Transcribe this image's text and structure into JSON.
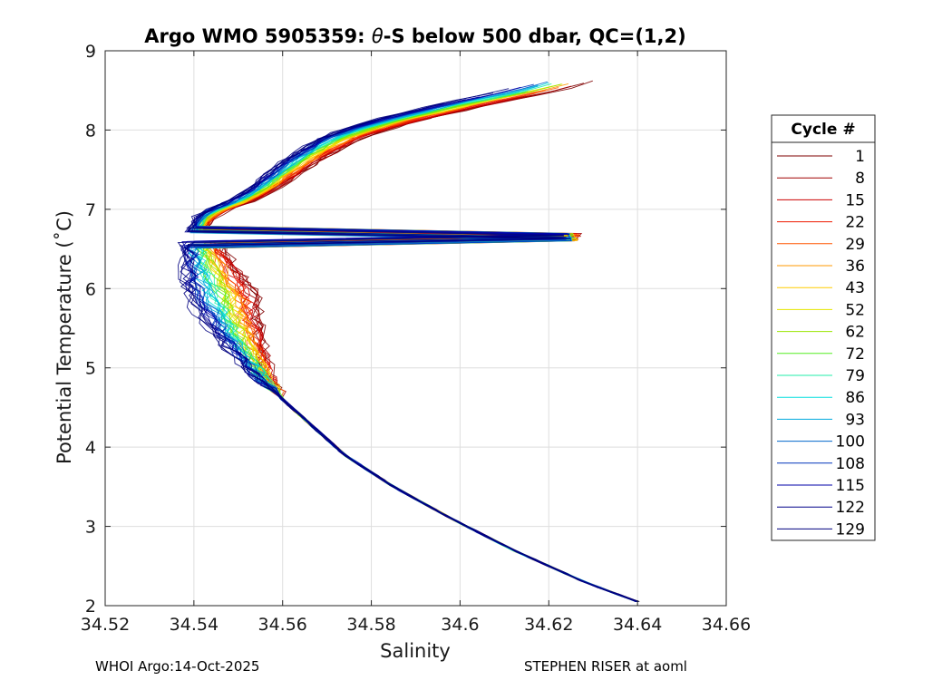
{
  "chart_data": {
    "type": "line",
    "title_prefix": "Argo WMO 5905359: ",
    "title_theta": "θ",
    "title_suffix": "-S below 500 dbar,  QC=(1,2)",
    "xlabel": "Salinity",
    "ylabel": "Potential Temperature (˚C)",
    "xlim": [
      34.52,
      34.66
    ],
    "ylim": [
      2,
      9
    ],
    "x_ticks": [
      34.52,
      34.54,
      34.56,
      34.58,
      34.6,
      34.62,
      34.64,
      34.66
    ],
    "x_tick_labels": [
      "34.52",
      "34.54",
      "34.56",
      "34.58",
      "34.6",
      "34.62",
      "34.64",
      "34.66"
    ],
    "y_ticks": [
      2,
      3,
      4,
      5,
      6,
      7,
      8,
      9
    ],
    "y_tick_labels": [
      "2",
      "3",
      "4",
      "5",
      "6",
      "7",
      "8",
      "9"
    ],
    "grid": true,
    "legend": {
      "title": "Cycle #",
      "placement": "right",
      "entries": [
        {
          "label": "1",
          "color": "#7f0000"
        },
        {
          "label": "8",
          "color": "#a00000"
        },
        {
          "label": "15",
          "color": "#cc0000"
        },
        {
          "label": "22",
          "color": "#ee1a00"
        },
        {
          "label": "29",
          "color": "#ff5500"
        },
        {
          "label": "36",
          "color": "#ff9900"
        },
        {
          "label": "43",
          "color": "#ffcc00"
        },
        {
          "label": "52",
          "color": "#e5e600"
        },
        {
          "label": "62",
          "color": "#99e600"
        },
        {
          "label": "72",
          "color": "#55ee22"
        },
        {
          "label": "79",
          "color": "#22eeaa"
        },
        {
          "label": "86",
          "color": "#00dddd"
        },
        {
          "label": "93",
          "color": "#00aadd"
        },
        {
          "label": "100",
          "color": "#0066cc"
        },
        {
          "label": "108",
          "color": "#0033bb"
        },
        {
          "label": "115",
          "color": "#0000aa"
        },
        {
          "label": "122",
          "color": "#000088"
        },
        {
          "label": "129",
          "color": "#00007f"
        }
      ]
    },
    "envelope": {
      "warm_cycle": [
        {
          "s": 34.54,
          "t": 6.7
        },
        {
          "s": 34.542,
          "t": 6.9
        },
        {
          "s": 34.545,
          "t": 7.0
        },
        {
          "s": 34.55,
          "t": 7.1
        },
        {
          "s": 34.556,
          "t": 7.3
        },
        {
          "s": 34.563,
          "t": 7.6
        },
        {
          "s": 34.572,
          "t": 7.9
        },
        {
          "s": 34.583,
          "t": 8.1
        },
        {
          "s": 34.598,
          "t": 8.3
        },
        {
          "s": 34.615,
          "t": 8.5
        },
        {
          "s": 34.625,
          "t": 8.65
        }
      ],
      "warm_fresh_offsets": [
        0.0,
        -0.001,
        -0.002,
        -0.003,
        0.0,
        -0.001,
        0.0,
        -0.002
      ],
      "warm_salty_offsets": [
        0.0,
        0.001,
        0.002,
        0.003,
        0.004,
        0.006,
        0.008,
        0.01
      ],
      "cold_cycle": [
        {
          "s": 34.64,
          "t": 2.05
        },
        {
          "s": 34.628,
          "t": 2.3
        },
        {
          "s": 34.612,
          "t": 2.7
        },
        {
          "s": 34.598,
          "t": 3.1
        },
        {
          "s": 34.585,
          "t": 3.5
        },
        {
          "s": 34.574,
          "t": 3.9
        },
        {
          "s": 34.566,
          "t": 4.3
        },
        {
          "s": 34.56,
          "t": 4.6
        },
        {
          "s": 34.555,
          "t": 4.9
        },
        {
          "s": 34.55,
          "t": 5.3
        },
        {
          "s": 34.546,
          "t": 5.7
        },
        {
          "s": 34.543,
          "t": 6.1
        },
        {
          "s": 34.541,
          "t": 6.5
        }
      ],
      "min_salinity_at_t6": 34.535,
      "max_salinity_at_t6": 34.556
    }
  },
  "footer": {
    "left": "WHOI Argo:14-Oct-2025",
    "right": "STEPHEN RISER at aoml"
  }
}
